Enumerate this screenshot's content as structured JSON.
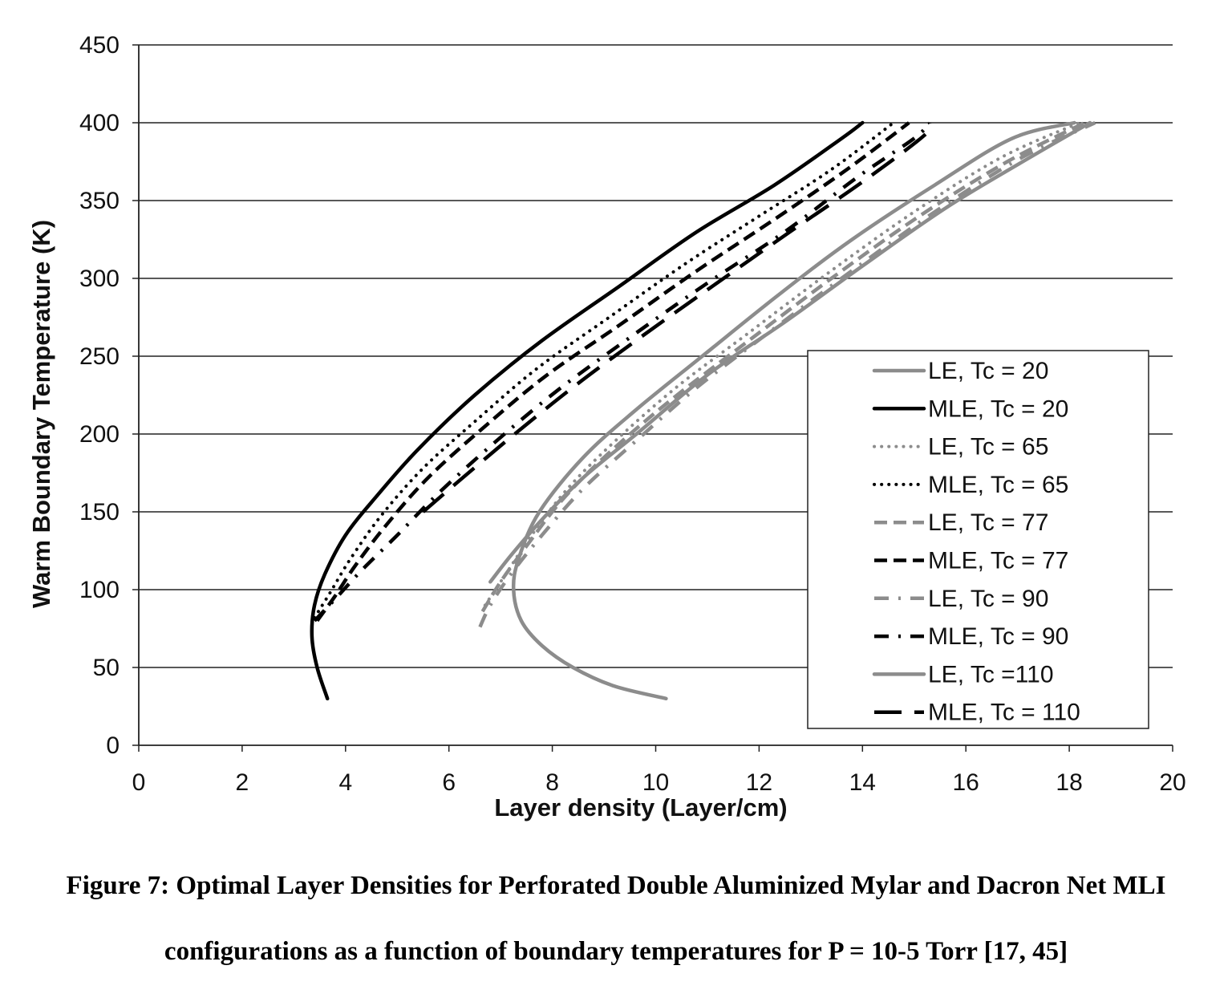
{
  "chart_data": {
    "type": "line",
    "title": "",
    "xlabel": "Layer density (Layer/cm)",
    "ylabel": "Warm Boundary  Temperature (K)",
    "xlim": [
      0,
      20
    ],
    "ylim": [
      0,
      450
    ],
    "xticks": [
      0,
      2,
      4,
      6,
      8,
      10,
      12,
      14,
      16,
      18,
      20
    ],
    "yticks": [
      0,
      50,
      100,
      150,
      200,
      250,
      300,
      350,
      400,
      450
    ],
    "grid": "horizontal",
    "legend_position": "lower-right",
    "series": [
      {
        "name": "LE, Tc = 20",
        "color": "#8c8c8c",
        "dash": "solid",
        "points": [
          [
            10.2,
            30
          ],
          [
            9.2,
            38
          ],
          [
            8.4,
            50
          ],
          [
            7.8,
            64
          ],
          [
            7.4,
            80
          ],
          [
            7.25,
            100
          ],
          [
            7.35,
            120
          ],
          [
            7.75,
            150
          ],
          [
            8.6,
            185
          ],
          [
            9.6,
            215
          ],
          [
            10.9,
            250
          ],
          [
            12.4,
            290
          ],
          [
            13.8,
            325
          ],
          [
            15.4,
            360
          ],
          [
            16.9,
            390
          ],
          [
            18.1,
            400
          ]
        ]
      },
      {
        "name": "MLE, Tc = 20",
        "color": "#000000",
        "dash": "solid",
        "points": [
          [
            3.65,
            30
          ],
          [
            3.45,
            50
          ],
          [
            3.35,
            70
          ],
          [
            3.4,
            90
          ],
          [
            3.6,
            110
          ],
          [
            4.0,
            135
          ],
          [
            4.6,
            160
          ],
          [
            5.4,
            190
          ],
          [
            6.5,
            225
          ],
          [
            7.8,
            260
          ],
          [
            9.3,
            295
          ],
          [
            10.8,
            330
          ],
          [
            12.3,
            360
          ],
          [
            13.6,
            390
          ],
          [
            14.0,
            400
          ]
        ]
      },
      {
        "name": "LE, Tc = 65",
        "color": "#8c8c8c",
        "dash": "dot",
        "points": [
          [
            6.7,
            90
          ],
          [
            7.1,
            110
          ],
          [
            7.6,
            135
          ],
          [
            8.3,
            165
          ],
          [
            9.2,
            195
          ],
          [
            10.4,
            230
          ],
          [
            11.8,
            265
          ],
          [
            13.4,
            305
          ],
          [
            15.1,
            345
          ],
          [
            16.7,
            378
          ],
          [
            18.2,
            400
          ]
        ]
      },
      {
        "name": "MLE, Tc = 65",
        "color": "#000000",
        "dash": "dot",
        "points": [
          [
            3.4,
            82
          ],
          [
            3.7,
            98
          ],
          [
            4.1,
            120
          ],
          [
            4.7,
            148
          ],
          [
            5.5,
            178
          ],
          [
            6.5,
            208
          ],
          [
            7.7,
            242
          ],
          [
            9.1,
            275
          ],
          [
            10.6,
            310
          ],
          [
            12.0,
            340
          ],
          [
            13.4,
            370
          ],
          [
            14.6,
            400
          ]
        ]
      },
      {
        "name": "LE, Tc = 77",
        "color": "#8c8c8c",
        "dash": "dash",
        "points": [
          [
            6.65,
            86
          ],
          [
            7.0,
            105
          ],
          [
            7.5,
            128
          ],
          [
            8.2,
            158
          ],
          [
            9.1,
            188
          ],
          [
            10.3,
            222
          ],
          [
            11.8,
            260
          ],
          [
            13.4,
            300
          ],
          [
            15.1,
            340
          ],
          [
            16.8,
            375
          ],
          [
            18.3,
            400
          ]
        ]
      },
      {
        "name": "MLE, Tc = 77",
        "color": "#000000",
        "dash": "dash",
        "points": [
          [
            3.45,
            80
          ],
          [
            3.8,
            96
          ],
          [
            4.2,
            116
          ],
          [
            4.8,
            142
          ],
          [
            5.6,
            172
          ],
          [
            6.7,
            205
          ],
          [
            7.9,
            238
          ],
          [
            9.3,
            270
          ],
          [
            10.8,
            305
          ],
          [
            12.3,
            338
          ],
          [
            13.7,
            370
          ],
          [
            14.9,
            400
          ]
        ]
      },
      {
        "name": "LE, Tc = 90",
        "color": "#8c8c8c",
        "dash": "dashdot",
        "points": [
          [
            6.6,
            76
          ],
          [
            6.8,
            90
          ],
          [
            7.2,
            110
          ],
          [
            7.8,
            135
          ],
          [
            8.6,
            165
          ],
          [
            9.6,
            195
          ],
          [
            10.8,
            230
          ],
          [
            12.3,
            268
          ],
          [
            13.8,
            305
          ],
          [
            15.5,
            345
          ],
          [
            17.1,
            378
          ],
          [
            18.5,
            400
          ]
        ]
      },
      {
        "name": "MLE, Tc = 90",
        "color": "#000000",
        "dash": "dashdot",
        "points": [
          [
            3.4,
            80
          ],
          [
            3.8,
            94
          ],
          [
            4.3,
            112
          ],
          [
            5.0,
            135
          ],
          [
            5.8,
            162
          ],
          [
            6.9,
            195
          ],
          [
            8.1,
            228
          ],
          [
            9.5,
            262
          ],
          [
            11.0,
            297
          ],
          [
            12.5,
            330
          ],
          [
            13.9,
            365
          ],
          [
            15.0,
            390
          ],
          [
            15.3,
            400
          ]
        ]
      },
      {
        "name": "LE, Tc =110",
        "color": "#8c8c8c",
        "dash": "solid",
        "points": [
          [
            6.8,
            105
          ],
          [
            7.2,
            122
          ],
          [
            7.8,
            145
          ],
          [
            8.6,
            172
          ],
          [
            9.7,
            202
          ],
          [
            11.0,
            238
          ],
          [
            12.5,
            272
          ],
          [
            14.0,
            308
          ],
          [
            15.6,
            345
          ],
          [
            17.1,
            375
          ],
          [
            18.4,
            400
          ]
        ]
      },
      {
        "name": "MLE, Tc = 110",
        "color": "#000000",
        "dash": "longdash",
        "points": [
          [
            5.5,
            150
          ],
          [
            6.2,
            170
          ],
          [
            7.2,
            198
          ],
          [
            8.4,
            230
          ],
          [
            9.7,
            262
          ],
          [
            11.1,
            295
          ],
          [
            12.6,
            330
          ],
          [
            14.0,
            362
          ],
          [
            15.2,
            392
          ],
          [
            15.3,
            400
          ]
        ]
      }
    ]
  },
  "caption": {
    "line1": "Figure 7: Optimal Layer Densities for Perforated Double Aluminized Mylar and Dacron Net MLI",
    "line2": "configurations as a function of boundary temperatures for P = 10-5 Torr [17, 45]"
  }
}
